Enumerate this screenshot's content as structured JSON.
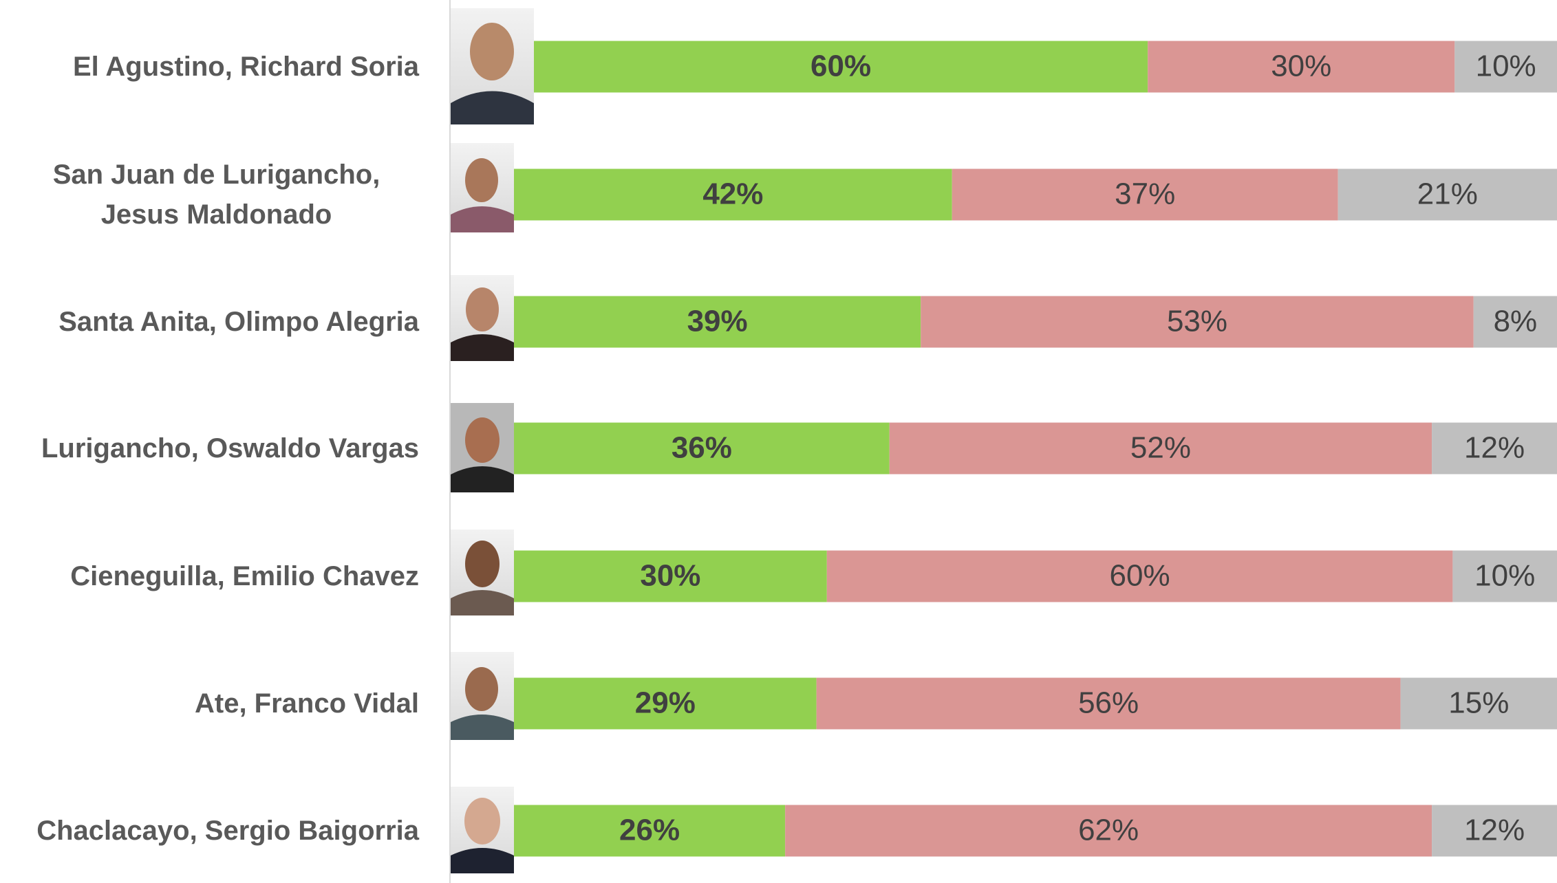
{
  "chart_data": {
    "type": "stacked-bar",
    "categories": [
      "El Agustino, Richard Soria",
      "San Juan de Lurigancho, Jesus Maldonado",
      "Santa Anita, Olimpo Alegria",
      "Lurigancho, Oswaldo Vargas",
      "Cieneguilla, Emilio Chavez",
      "Ate, Franco Vidal",
      "Chaclacayo, Sergio Baigorria"
    ],
    "series": [
      {
        "color": "#92d050",
        "values": [
          60,
          42,
          39,
          36,
          30,
          29,
          26
        ],
        "value_labels": [
          "60%",
          "42%",
          "39%",
          "36%",
          "30%",
          "29%",
          "26%"
        ]
      },
      {
        "color": "#da9694",
        "values": [
          30,
          37,
          53,
          52,
          60,
          56,
          62
        ],
        "value_labels": [
          "30%",
          "37%",
          "53%",
          "52%",
          "60%",
          "56%",
          "62%"
        ]
      },
      {
        "color": "#bfbfbf",
        "values": [
          10,
          21,
          8,
          12,
          10,
          15,
          12
        ],
        "value_labels": [
          "10%",
          "21%",
          "8%",
          "12%",
          "10%",
          "15%",
          "12%"
        ]
      }
    ]
  }
}
